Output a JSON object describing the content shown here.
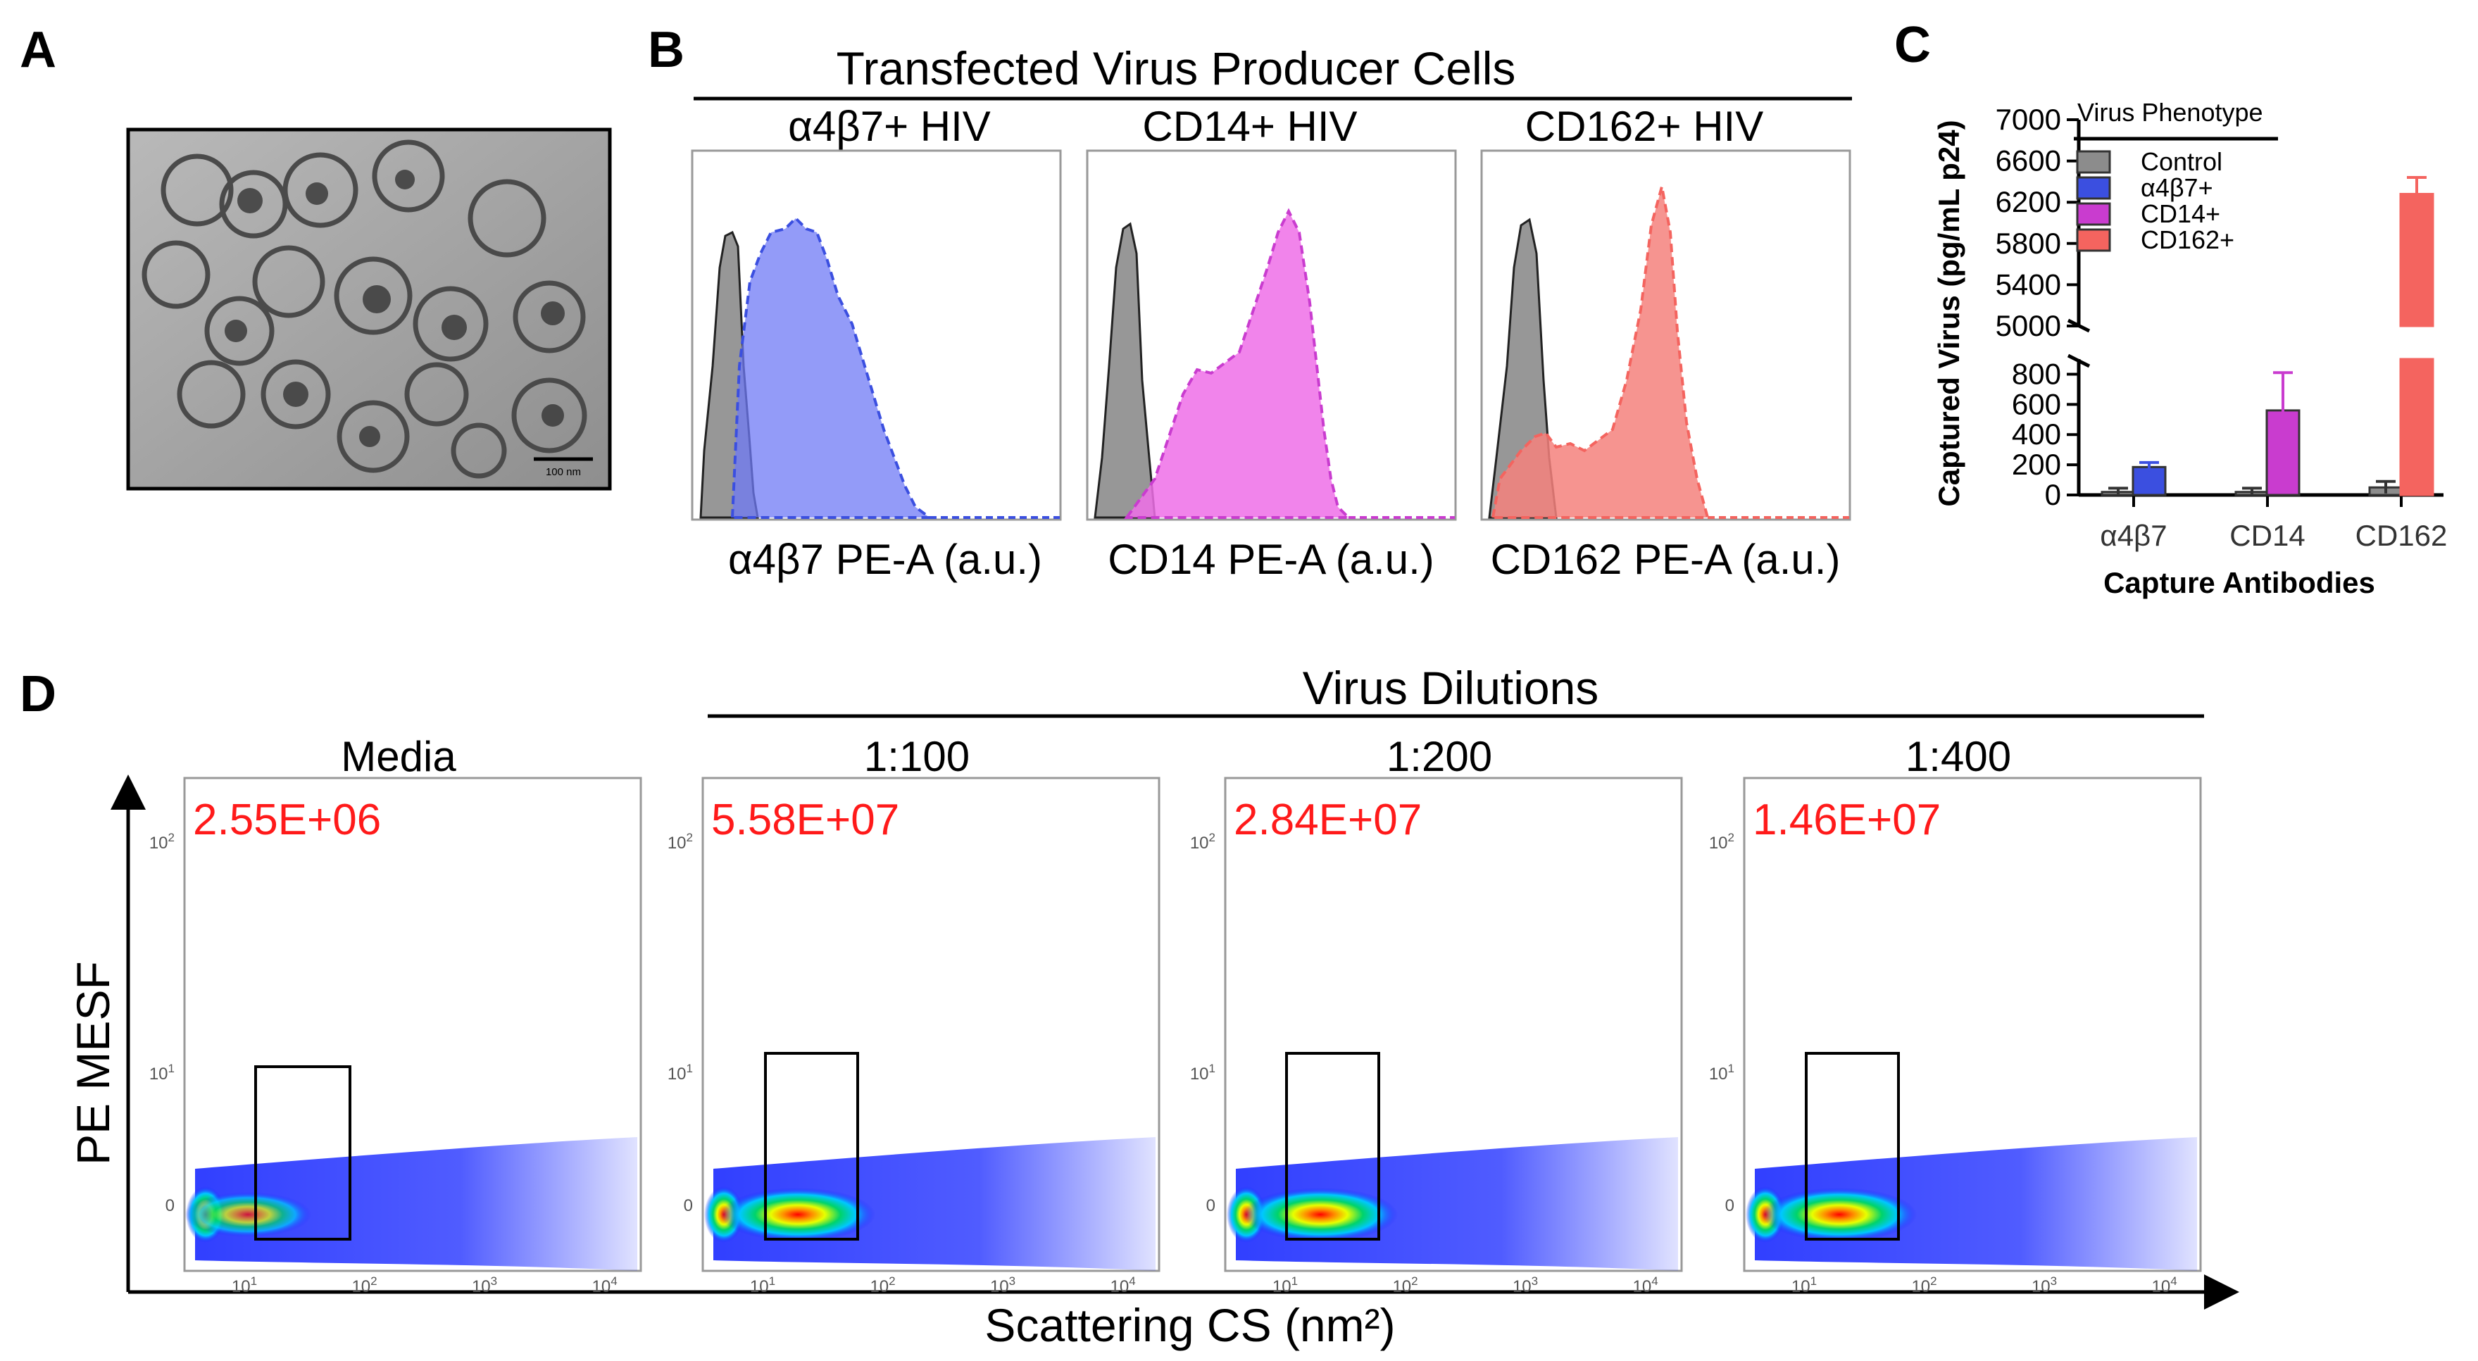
{
  "panel_letters": {
    "a": "A",
    "b": "B",
    "c": "C",
    "d": "D"
  },
  "panel_a": {
    "scale_bar": "100 nm"
  },
  "panel_b": {
    "header": "Transfected Virus Producer Cells",
    "titles": [
      "α4β7+ HIV",
      "CD14+ HIV",
      "CD162+ HIV"
    ],
    "xlabels": [
      "α4β7 PE-A (a.u.)",
      "CD14 PE-A (a.u.)",
      "CD162 PE-A (a.u.)"
    ],
    "colors": {
      "control": "#8c8c8c",
      "a4b7": "#3b4fe0",
      "cd14": "#e23ee0",
      "cd162": "#f4645f"
    }
  },
  "chart_data": [
    {
      "type": "bar",
      "title": "",
      "xlabel": "Capture Antibodies",
      "ylabel": "Captured Virus (pg/mL p24)",
      "categories": [
        "α4β7",
        "CD14",
        "CD162"
      ],
      "legend_title": "Virus Phenotype",
      "legend": [
        "Control",
        "α4β7+",
        "CD14+",
        "CD162+"
      ],
      "series": [
        {
          "name": "Control",
          "color": "#8c8c8c",
          "values": [
            20,
            20,
            50
          ],
          "errors": [
            25,
            25,
            40
          ]
        },
        {
          "name": "α4β7+",
          "color": "#3b4fe0",
          "values": [
            185,
            null,
            null
          ],
          "errors": [
            30,
            null,
            null
          ]
        },
        {
          "name": "CD14+",
          "color": "#c93ccf",
          "values": [
            null,
            560,
            null
          ],
          "errors": [
            null,
            250,
            null
          ]
        },
        {
          "name": "CD162+",
          "color": "#f4645f",
          "values": [
            null,
            null,
            6280
          ],
          "errors": [
            null,
            null,
            160
          ]
        }
      ],
      "yticks_lower": [
        "0",
        "200",
        "400",
        "600",
        "800"
      ],
      "yticks_upper": [
        "5000",
        "5400",
        "5800",
        "6200",
        "6600",
        "7000"
      ],
      "ylim_lower": [
        0,
        900
      ],
      "ylim_upper": [
        5000,
        7000
      ]
    }
  ],
  "panel_d": {
    "header": "Virus Dilutions",
    "ylabel": "PE MESF",
    "xlabel": "Scattering CS (nm²)",
    "plots": [
      {
        "title": "Media",
        "count": "2.55E+06"
      },
      {
        "title": "1:100",
        "count": "5.58E+07"
      },
      {
        "title": "1:200",
        "count": "2.84E+07"
      },
      {
        "title": "1:400",
        "count": "1.46E+07"
      }
    ],
    "yticks": [
      {
        "b": "10",
        "e": "2"
      },
      {
        "b": "10",
        "e": "1"
      },
      {
        "b": "0",
        "e": ""
      }
    ],
    "xticks": [
      {
        "b": "10",
        "e": "1"
      },
      {
        "b": "10",
        "e": "2"
      },
      {
        "b": "10",
        "e": "3"
      },
      {
        "b": "10",
        "e": "4"
      }
    ]
  }
}
